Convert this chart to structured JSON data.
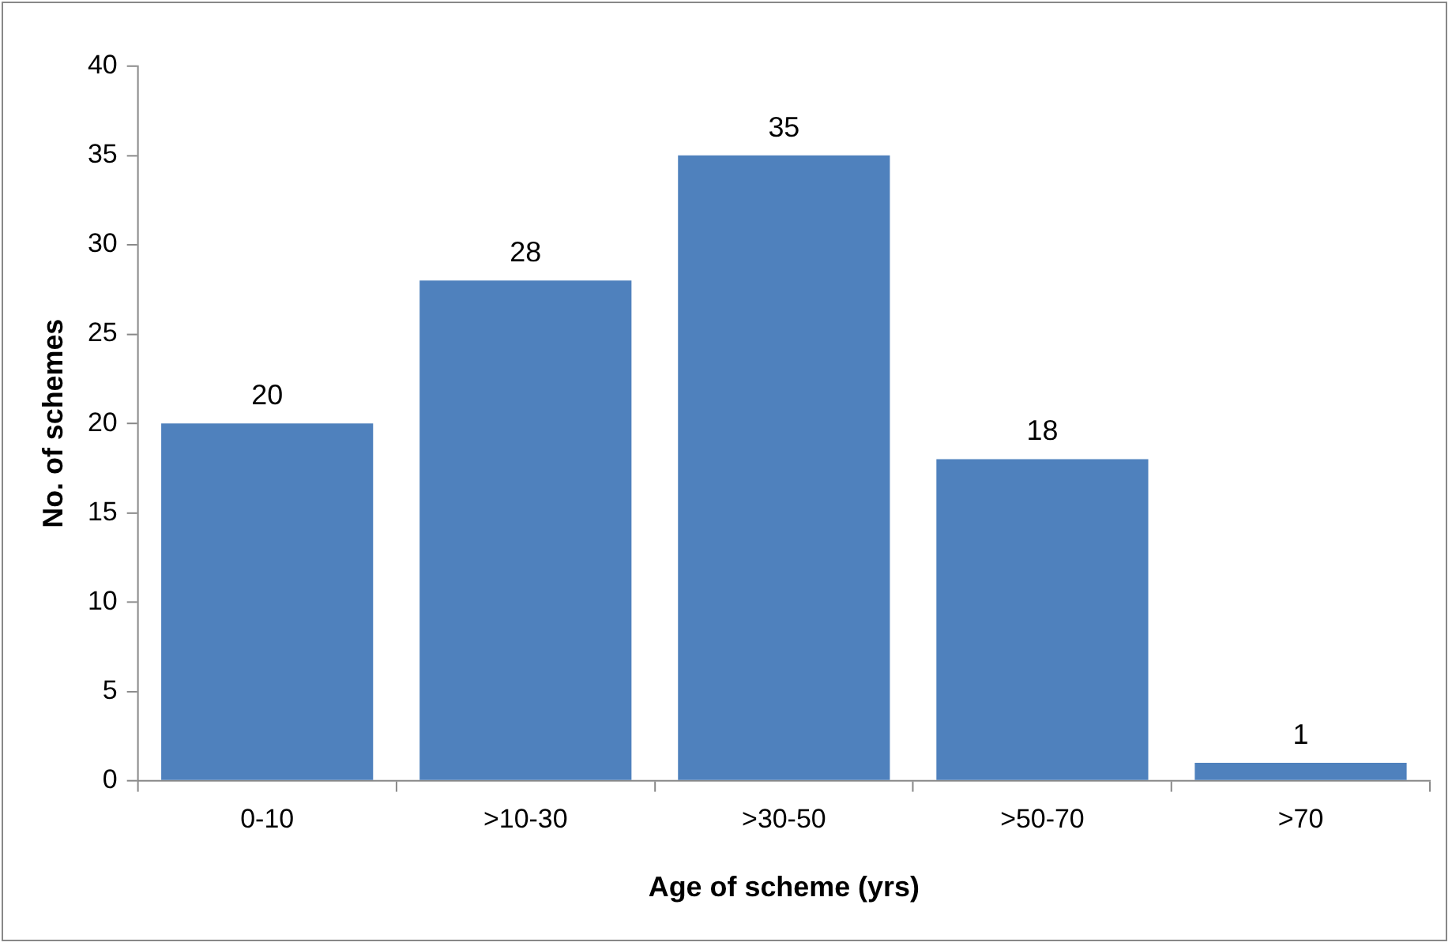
{
  "chart_data": {
    "type": "bar",
    "xlabel": "Age of scheme (yrs)",
    "ylabel": "No. of schemes",
    "categories": [
      "0-10",
      ">10-30",
      ">30-50",
      ">50-70",
      ">70"
    ],
    "values": [
      20,
      28,
      35,
      18,
      1
    ],
    "color": "#4f81bd",
    "ylim": [
      0,
      40
    ],
    "yticks": [
      0,
      5,
      10,
      15,
      20,
      25,
      30,
      35,
      40
    ],
    "grid": false,
    "data_labels": true,
    "legend": false
  }
}
